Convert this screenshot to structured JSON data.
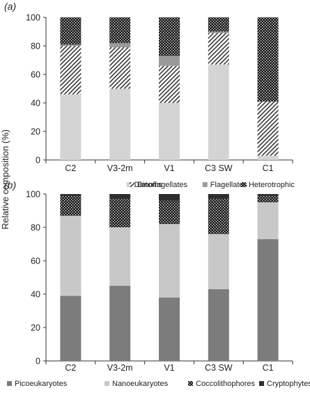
{
  "ylabel": "Relative composition (%)",
  "chart_data": [
    {
      "panel_label": "(a)",
      "type": "bar",
      "stacked": true,
      "categories": [
        "C2",
        "V3-2m",
        "V1",
        "C3 SW",
        "C1"
      ],
      "ylim": [
        0,
        100
      ],
      "yticks": [
        0,
        20,
        40,
        60,
        80,
        100
      ],
      "grid": false,
      "legend_position": "bottom",
      "series": [
        {
          "name": "Diatoms",
          "values": [
            46,
            50,
            40,
            67,
            3
          ],
          "color": "#d4d4d4",
          "pattern": "solid"
        },
        {
          "name": "Dinoflagellates",
          "values": [
            34,
            29,
            26,
            22,
            38
          ],
          "color": "#4a4a4a",
          "pattern": "hatch"
        },
        {
          "name": "Flagellates",
          "values": [
            1,
            3,
            7,
            1,
            0
          ],
          "color": "#9a9a9a",
          "pattern": "solid"
        },
        {
          "name": "Heterotrophic",
          "values": [
            19,
            18,
            27,
            10,
            59
          ],
          "color": "#1c1c1c",
          "pattern": "dots"
        }
      ]
    },
    {
      "panel_label": "(b)",
      "type": "bar",
      "stacked": true,
      "categories": [
        "C2",
        "V3-2m",
        "V1",
        "C3 SW",
        "C1"
      ],
      "ylim": [
        0,
        100
      ],
      "yticks": [
        0,
        20,
        40,
        60,
        80,
        100
      ],
      "grid": false,
      "legend_position": "bottom",
      "series": [
        {
          "name": "Picoeukaryotes",
          "values": [
            39,
            45,
            38,
            43,
            73
          ],
          "color": "#7c7c7c",
          "pattern": "solid"
        },
        {
          "name": "Nanoeukaryotes",
          "values": [
            48,
            35,
            44,
            33,
            22
          ],
          "color": "#c8c8c8",
          "pattern": "solid"
        },
        {
          "name": "Coccolithophores",
          "values": [
            12,
            17,
            14,
            21,
            4
          ],
          "color": "#1c1c1c",
          "pattern": "dots"
        },
        {
          "name": "Cryptophytes",
          "values": [
            1,
            3,
            4,
            3,
            1
          ],
          "color": "#2e2e2e",
          "pattern": "solid"
        }
      ]
    }
  ]
}
